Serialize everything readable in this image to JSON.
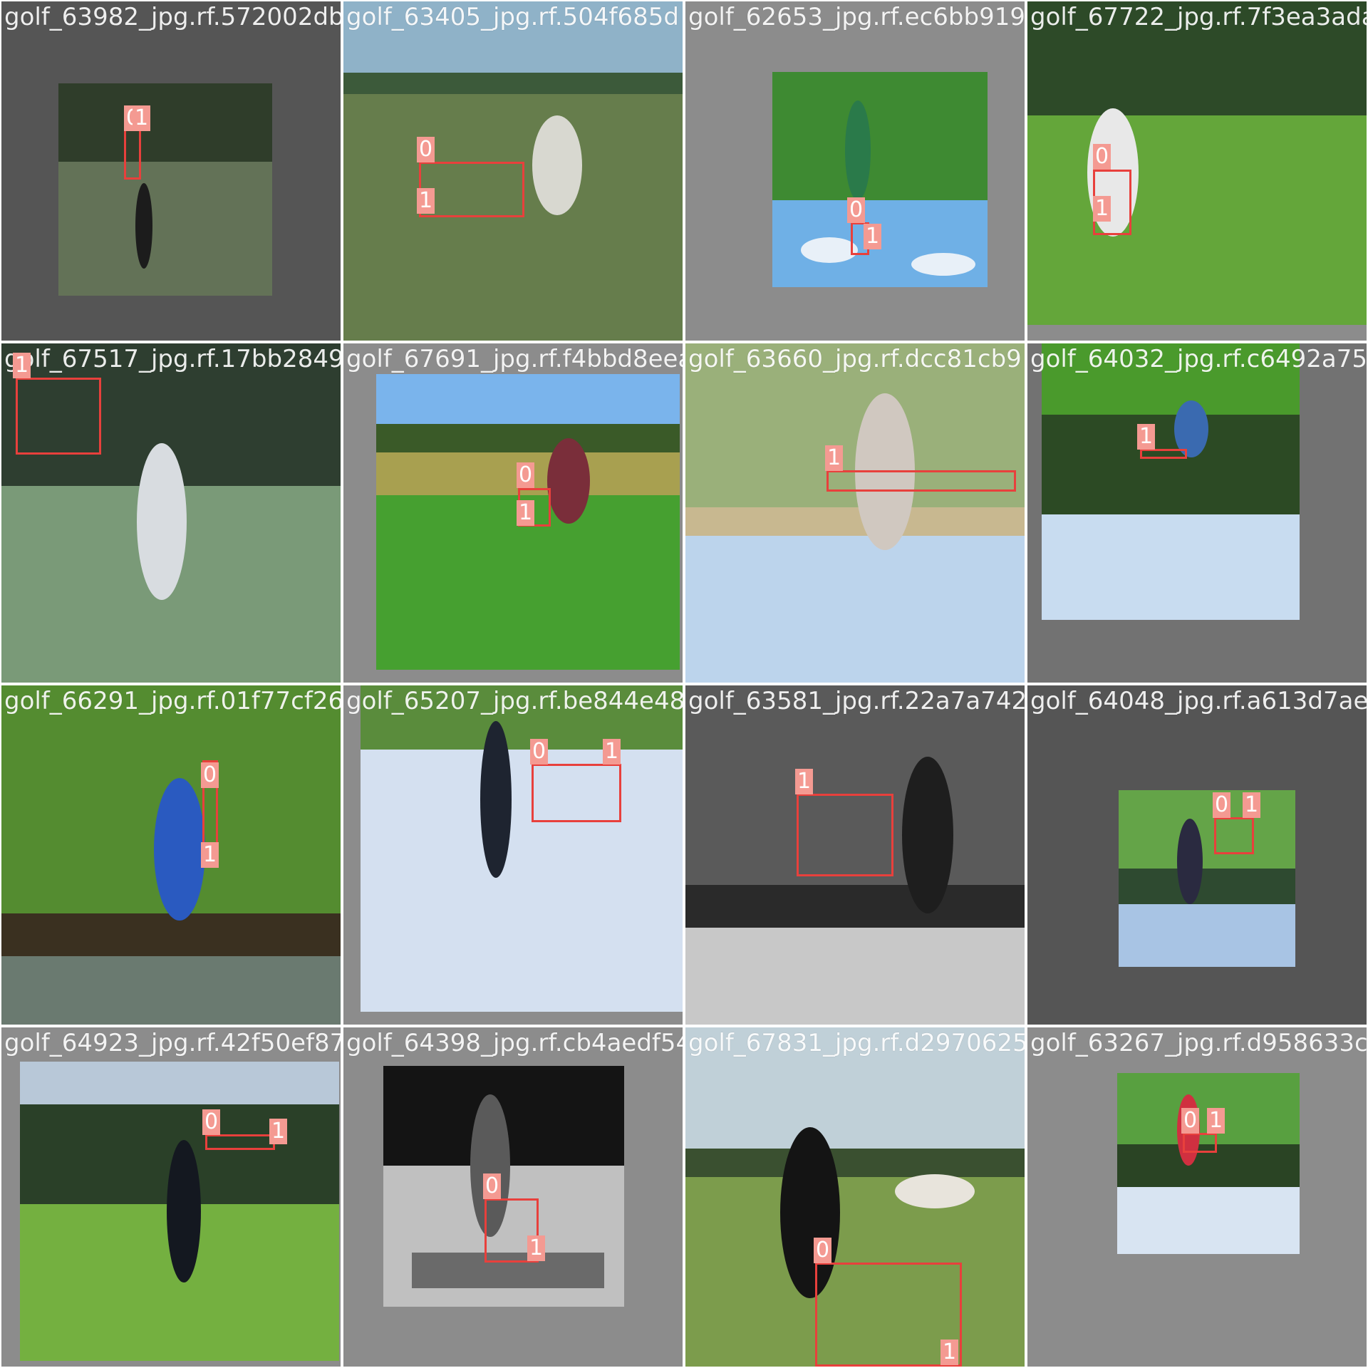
{
  "colors": {
    "box_stroke": "#e8403c",
    "label_bg": "#f49a92",
    "label_text": "#ffffff",
    "pad_dark": "#555555",
    "pad_mid": "#727272",
    "pad_light": "#8c8c8c"
  },
  "tiles": [
    {
      "filename": "golf_63982_jpg.rf.572002db",
      "class_labels": [
        "0",
        "1"
      ]
    },
    {
      "filename": "golf_63405_jpg.rf.504f685d",
      "class_labels": [
        "0",
        "1"
      ]
    },
    {
      "filename": "golf_62653_jpg.rf.ec6bb919",
      "class_labels": [
        "0",
        "1"
      ]
    },
    {
      "filename": "golf_67722_jpg.rf.7f3ea3ada",
      "class_labels": [
        "0",
        "1"
      ]
    },
    {
      "filename": "golf_67517_jpg.rf.17bb2849",
      "class_labels": [
        "1"
      ]
    },
    {
      "filename": "golf_67691_jpg.rf.f4bbd8eea",
      "class_labels": [
        "0",
        "1"
      ]
    },
    {
      "filename": "golf_63660_jpg.rf.dcc81cb9",
      "class_labels": [
        "1"
      ]
    },
    {
      "filename": "golf_64032_jpg.rf.c6492a75",
      "class_labels": [
        "1"
      ]
    },
    {
      "filename": "golf_66291_jpg.rf.01f77cf26",
      "class_labels": [
        "0",
        "1"
      ]
    },
    {
      "filename": "golf_65207_jpg.rf.be844e48",
      "class_labels": [
        "0",
        "1"
      ]
    },
    {
      "filename": "golf_63581_jpg.rf.22a7a742",
      "class_labels": [
        "1"
      ]
    },
    {
      "filename": "golf_64048_jpg.rf.a613d7ae",
      "class_labels": [
        "0",
        "1"
      ]
    },
    {
      "filename": "golf_64923_jpg.rf.42f50ef87",
      "class_labels": [
        "0",
        "1"
      ]
    },
    {
      "filename": "golf_64398_jpg.rf.cb4aedf54",
      "class_labels": [
        "0",
        "1"
      ]
    },
    {
      "filename": "golf_67831_jpg.rf.d2970625",
      "class_labels": [
        "0",
        "1"
      ]
    },
    {
      "filename": "golf_63267_jpg.rf.d958633c",
      "class_labels": [
        "0",
        "1"
      ]
    }
  ]
}
